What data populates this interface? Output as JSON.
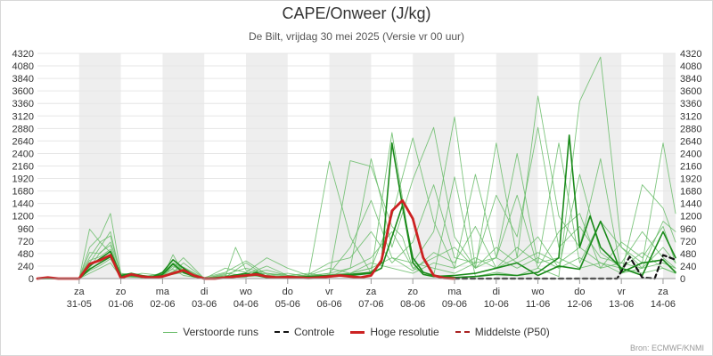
{
  "title": "CAPE/Onweer (J/kg)",
  "subtitle": "De Bilt, vrijdag 30 mei 2025 (Versie vr 00 uur)",
  "source": "Bron: ECMWF/KNMI",
  "chart_data": {
    "type": "line",
    "title": "CAPE/Onweer (J/kg)",
    "subtitle": "De Bilt, vrijdag 30 mei 2025 (Versie vr 00 uur)",
    "x_unit": "days since 30-05 00 uur",
    "xlim": [
      0,
      15.3
    ],
    "ylim": [
      0,
      4320
    ],
    "yticks": [
      0,
      240,
      480,
      720,
      960,
      1200,
      1440,
      1680,
      1920,
      2160,
      2400,
      2640,
      2880,
      3120,
      3360,
      3600,
      3840,
      4080,
      4320
    ],
    "y_axis_both_sides": true,
    "weekend_shading": [
      [
        1,
        2
      ],
      [
        3,
        4
      ],
      [
        5,
        6
      ],
      [
        7,
        8
      ],
      [
        9,
        10
      ],
      [
        11,
        12
      ],
      [
        13,
        14
      ],
      [
        15,
        15.3
      ]
    ],
    "xticks": [
      {
        "x": 1,
        "day": "za",
        "date": "31-05"
      },
      {
        "x": 2,
        "day": "zo",
        "date": "01-06"
      },
      {
        "x": 3,
        "day": "ma",
        "date": "02-06"
      },
      {
        "x": 4,
        "day": "di",
        "date": "03-06"
      },
      {
        "x": 5,
        "day": "wo",
        "date": "04-06"
      },
      {
        "x": 6,
        "day": "do",
        "date": "05-06"
      },
      {
        "x": 7,
        "day": "vr",
        "date": "06-06"
      },
      {
        "x": 8,
        "day": "za",
        "date": "07-06"
      },
      {
        "x": 9,
        "day": "zo",
        "date": "08-06"
      },
      {
        "x": 10,
        "day": "ma",
        "date": "09-06"
      },
      {
        "x": 11,
        "day": "di",
        "date": "10-06"
      },
      {
        "x": 12,
        "day": "wo",
        "date": "11-06"
      },
      {
        "x": 13,
        "day": "do",
        "date": "12-06"
      },
      {
        "x": 14,
        "day": "vr",
        "date": "13-06"
      },
      {
        "x": 15,
        "day": "za",
        "date": "14-06"
      }
    ],
    "legend": [
      "Verstoorde runs",
      "Controle",
      "Hoge resolutie",
      "Middelste (P50)"
    ],
    "legend_position": "bottom",
    "grid": true,
    "colors": {
      "ensemble": "#66bb66",
      "ensemble_dark": "#1a8a1a",
      "control": "#111111",
      "hires": "#cc2222",
      "median": "#aa2222",
      "shade": "#eeeeee",
      "grid": "#e6e6e6"
    },
    "series": [
      {
        "name": "Hoge resolutie",
        "style": "red-thick",
        "x": [
          0,
          0.25,
          0.5,
          0.75,
          1.0,
          1.25,
          1.5,
          1.75,
          2.0,
          2.25,
          2.5,
          2.75,
          3.0,
          3.25,
          3.5,
          3.75,
          4.0,
          4.25,
          4.5,
          4.75,
          5.0,
          5.25,
          5.5,
          5.75,
          6.0,
          6.25,
          6.5,
          6.75,
          7.0,
          7.25,
          7.5,
          7.75,
          8.0,
          8.25,
          8.5,
          8.75,
          9.0,
          9.25,
          9.5,
          9.75,
          10.0
        ],
        "y": [
          0,
          20,
          0,
          0,
          0,
          280,
          350,
          450,
          10,
          80,
          40,
          20,
          40,
          100,
          160,
          60,
          0,
          0,
          20,
          40,
          60,
          80,
          40,
          20,
          30,
          20,
          10,
          20,
          40,
          60,
          40,
          20,
          60,
          350,
          1300,
          1500,
          1150,
          400,
          60,
          10,
          0
        ]
      },
      {
        "name": "Controle",
        "style": "black-dashed",
        "x": [
          10.0,
          10.5,
          11.0,
          11.5,
          12.0,
          12.5,
          13.0,
          13.5,
          13.9,
          14.2,
          14.5,
          14.8,
          15.0,
          15.3
        ],
        "y": [
          0,
          0,
          0,
          0,
          0,
          0,
          0,
          0,
          0,
          420,
          20,
          0,
          450,
          360
        ]
      },
      {
        "name": "Verstoorde runs (dark member a)",
        "style": "green-dark",
        "x": [
          0,
          0.5,
          0.75,
          1.0,
          1.25,
          1.5,
          1.75,
          2.0,
          2.25,
          2.5,
          2.75,
          3.0,
          3.25,
          3.5,
          3.75,
          4.0,
          4.5,
          5.0,
          5.25,
          5.5,
          6.0,
          6.5,
          7.0,
          7.5,
          8.0,
          8.25,
          8.5,
          8.75,
          9.0,
          9.25,
          9.5,
          10.0,
          10.5,
          11.0,
          11.5,
          12.0,
          12.5,
          12.75,
          13.0,
          13.25,
          13.5,
          14.0,
          14.5,
          15.0,
          15.3
        ],
        "y": [
          0,
          0,
          0,
          0,
          240,
          380,
          520,
          60,
          100,
          60,
          20,
          80,
          280,
          120,
          40,
          0,
          20,
          40,
          120,
          40,
          20,
          40,
          60,
          80,
          120,
          300,
          2600,
          1400,
          400,
          120,
          60,
          20,
          40,
          80,
          60,
          120,
          400,
          2750,
          600,
          1200,
          600,
          200,
          60,
          900,
          400
        ]
      },
      {
        "name": "Verstoorde runs (dark member b)",
        "style": "green-dark",
        "x": [
          0,
          0.5,
          0.75,
          1.0,
          1.25,
          1.5,
          1.75,
          2.0,
          2.25,
          2.5,
          2.75,
          3.0,
          3.25,
          3.5,
          3.75,
          4.0,
          4.5,
          5.0,
          5.25,
          5.5,
          6.0,
          6.5,
          7.0,
          7.5,
          8.0,
          8.25,
          8.5,
          8.75,
          9.0,
          9.25,
          9.5,
          10.0,
          10.5,
          11.0,
          11.5,
          12.0,
          12.5,
          13.0,
          13.5,
          14.0,
          14.5,
          15.0,
          15.3
        ],
        "y": [
          0,
          0,
          0,
          0,
          180,
          300,
          420,
          40,
          60,
          40,
          30,
          120,
          360,
          200,
          60,
          0,
          30,
          100,
          60,
          20,
          40,
          20,
          40,
          60,
          100,
          200,
          800,
          1400,
          300,
          80,
          40,
          60,
          100,
          200,
          300,
          60,
          240,
          180,
          1100,
          120,
          300,
          360,
          120
        ]
      },
      {
        "name": "Verstoorde runs (m01)",
        "style": "green",
        "x": [
          0,
          0.5,
          0.75,
          1.0,
          1.25,
          1.5,
          1.75,
          2.0,
          2.25,
          2.5,
          3.0,
          3.25,
          3.5,
          4.0,
          4.5,
          4.75,
          5.0,
          5.5,
          6.0,
          6.5,
          7.0,
          7.5,
          8.0,
          8.5,
          8.75,
          9.0,
          9.5,
          10.0,
          10.5,
          11.0,
          11.5,
          12.0,
          12.5,
          13.0,
          13.5,
          14.0,
          14.5,
          15.0,
          15.3
        ],
        "y": [
          0,
          0,
          0,
          0,
          600,
          800,
          1250,
          100,
          40,
          20,
          60,
          240,
          120,
          0,
          20,
          600,
          160,
          40,
          20,
          40,
          60,
          2260,
          2150,
          1000,
          800,
          200,
          60,
          1950,
          40,
          120,
          60,
          200,
          40,
          3400,
          4250,
          600,
          300,
          2600,
          1250
        ]
      },
      {
        "name": "Verstoorde runs (m02)",
        "style": "green",
        "x": [
          0,
          0.5,
          1.0,
          1.25,
          1.5,
          1.75,
          2.0,
          2.5,
          3.0,
          3.25,
          3.5,
          4.0,
          4.5,
          5.0,
          5.5,
          6.0,
          6.5,
          7.0,
          7.5,
          8.0,
          8.25,
          8.5,
          9.0,
          9.5,
          10.0,
          10.5,
          11.0,
          11.5,
          12.0,
          12.5,
          13.0,
          13.5,
          14.0,
          14.5,
          15.0,
          15.3
        ],
        "y": [
          0,
          0,
          0,
          950,
          700,
          500,
          80,
          30,
          100,
          300,
          200,
          0,
          40,
          100,
          160,
          60,
          40,
          100,
          200,
          2300,
          1500,
          600,
          1900,
          2900,
          800,
          200,
          2600,
          400,
          3500,
          1200,
          600,
          2300,
          100,
          1800,
          1350,
          700
        ]
      },
      {
        "name": "Verstoorde runs (m03)",
        "style": "green",
        "x": [
          0,
          0.5,
          1.0,
          1.25,
          1.5,
          1.75,
          2.0,
          2.5,
          3.0,
          3.25,
          3.5,
          4.0,
          4.5,
          5.0,
          5.5,
          6.0,
          6.5,
          7.0,
          7.5,
          8.0,
          8.5,
          9.0,
          9.5,
          10.0,
          10.5,
          11.0,
          11.5,
          12.0,
          12.5,
          13.0,
          13.5,
          14.0,
          14.5,
          15.0,
          15.3
        ],
        "y": [
          0,
          0,
          0,
          300,
          600,
          900,
          40,
          60,
          20,
          460,
          100,
          0,
          20,
          300,
          40,
          20,
          40,
          2250,
          800,
          100,
          2800,
          300,
          900,
          3100,
          200,
          400,
          2400,
          300,
          2600,
          300,
          1100,
          600,
          200,
          1100,
          900
        ]
      },
      {
        "name": "Verstoorde runs (m04)",
        "style": "green",
        "x": [
          0,
          0.5,
          1.0,
          1.25,
          1.5,
          1.75,
          2.0,
          2.5,
          3.0,
          3.25,
          3.5,
          4.0,
          4.5,
          5.0,
          5.5,
          6.0,
          6.5,
          7.0,
          7.5,
          8.0,
          8.5,
          9.0,
          9.5,
          10.0,
          10.5,
          11.0,
          11.5,
          12.0,
          12.5,
          13.0,
          13.5,
          14.0,
          14.5,
          15.0,
          15.3
        ],
        "y": [
          0,
          0,
          0,
          400,
          700,
          820,
          60,
          20,
          40,
          200,
          400,
          0,
          80,
          200,
          100,
          60,
          20,
          80,
          100,
          200,
          1200,
          2700,
          1100,
          200,
          2000,
          400,
          1600,
          200,
          900,
          1250,
          200,
          700,
          400,
          1000,
          300
        ]
      },
      {
        "name": "Verstoorde runs (m05)",
        "style": "green",
        "x": [
          0,
          0.5,
          1.0,
          1.25,
          1.5,
          1.75,
          2.0,
          2.5,
          3.0,
          3.25,
          3.5,
          4.0,
          4.5,
          5.0,
          5.5,
          6.0,
          6.5,
          7.0,
          7.5,
          8.0,
          8.5,
          9.0,
          9.5,
          10.0,
          10.5,
          11.0,
          11.5,
          12.0,
          12.5,
          13.0,
          13.5,
          14.0,
          14.5,
          15.0,
          15.3
        ],
        "y": [
          0,
          0,
          0,
          500,
          480,
          700,
          100,
          60,
          20,
          300,
          160,
          20,
          120,
          340,
          80,
          20,
          80,
          300,
          400,
          900,
          300,
          700,
          1800,
          400,
          300,
          1600,
          800,
          2900,
          600,
          1000,
          400,
          300,
          900,
          400,
          200
        ]
      },
      {
        "name": "Verstoorde runs (m06)",
        "style": "green",
        "x": [
          0,
          0.5,
          1.0,
          1.25,
          1.5,
          1.75,
          2.0,
          2.5,
          3.0,
          3.25,
          3.5,
          4.0,
          4.5,
          5.0,
          5.5,
          6.0,
          6.5,
          7.0,
          7.5,
          8.0,
          8.5,
          9.0,
          9.5,
          10.0,
          10.5,
          11.0,
          11.5,
          12.0,
          12.5,
          13.0,
          13.5,
          14.0,
          14.5,
          15.0,
          15.3
        ],
        "y": [
          0,
          0,
          0,
          200,
          500,
          640,
          20,
          100,
          60,
          120,
          300,
          0,
          200,
          120,
          400,
          200,
          60,
          100,
          600,
          1500,
          400,
          150,
          500,
          300,
          1000,
          200,
          400,
          800,
          200,
          2000,
          500,
          200,
          500,
          200,
          100
        ]
      },
      {
        "name": "Verstoorde runs (m07)",
        "style": "green",
        "x": [
          0,
          0.5,
          1.0,
          1.25,
          1.5,
          1.75,
          2.0,
          2.5,
          3.0,
          3.25,
          3.5,
          4.0,
          4.5,
          5.0,
          5.5,
          6.0,
          6.5,
          7.0,
          7.5,
          8.0,
          8.5,
          9.0,
          9.5,
          10.0,
          10.5,
          11.0,
          11.5,
          12.0,
          12.5,
          13.0,
          13.5,
          14.0,
          14.5,
          15.0,
          15.3
        ],
        "y": [
          0,
          0,
          0,
          350,
          420,
          560,
          60,
          20,
          100,
          180,
          60,
          0,
          40,
          80,
          240,
          60,
          100,
          40,
          200,
          400,
          900,
          200,
          400,
          600,
          200,
          600,
          300,
          500,
          300,
          600,
          300,
          100,
          200,
          600,
          300
        ]
      },
      {
        "name": "Verstoorde runs (m08)",
        "style": "green",
        "x": [
          0,
          0.5,
          1.0,
          1.25,
          1.5,
          1.75,
          2.0,
          2.5,
          3.0,
          3.25,
          3.5,
          4.0,
          4.5,
          5.0,
          5.5,
          6.0,
          6.5,
          7.0,
          7.5,
          8.0,
          8.5,
          9.0,
          9.5,
          10.0,
          10.5,
          11.0,
          11.5,
          12.0,
          12.5,
          13.0,
          13.5,
          14.0,
          14.5,
          15.0,
          15.3
        ],
        "y": [
          0,
          0,
          0,
          150,
          250,
          380,
          40,
          60,
          40,
          140,
          220,
          0,
          60,
          40,
          60,
          100,
          40,
          60,
          100,
          300,
          200,
          100,
          300,
          200,
          400,
          200,
          600,
          300,
          400,
          200,
          300,
          200,
          100,
          200,
          100
        ]
      },
      {
        "name": "Verstoorde runs (m09)",
        "style": "green",
        "x": [
          0,
          0.5,
          1.0,
          1.25,
          1.5,
          1.75,
          2.0,
          2.5,
          3.0,
          3.25,
          3.5,
          4.0,
          4.5,
          5.0,
          5.5,
          6.0,
          6.5,
          7.0,
          7.5,
          8.0,
          8.5,
          9.0,
          9.5,
          10.0,
          10.5,
          11.0,
          11.5,
          12.0,
          12.5,
          13.0,
          13.5,
          14.0,
          14.5,
          15.0,
          15.3
        ],
        "y": [
          0,
          0,
          0,
          100,
          200,
          300,
          30,
          20,
          60,
          80,
          120,
          0,
          100,
          60,
          100,
          40,
          60,
          200,
          100,
          200,
          400,
          300,
          200,
          100,
          300,
          400,
          200,
          400,
          200,
          400,
          200,
          300,
          200,
          300,
          200
        ]
      }
    ]
  }
}
